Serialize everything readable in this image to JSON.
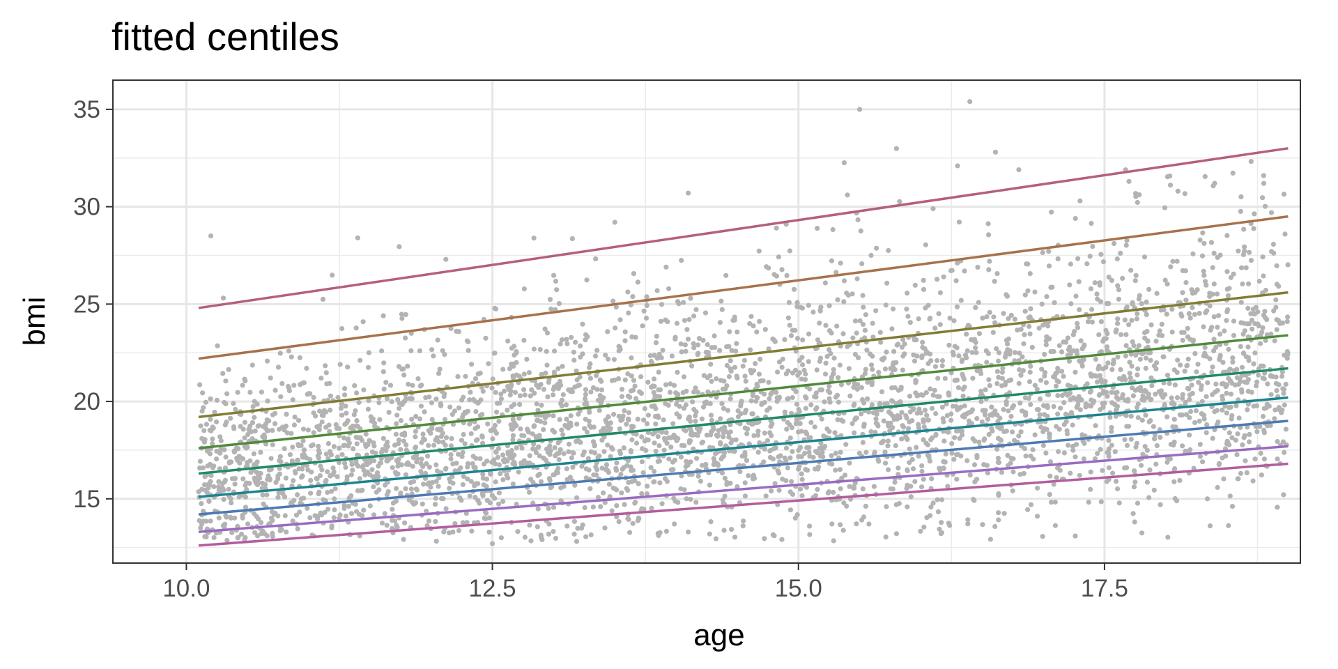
{
  "chart_data": {
    "type": "scatter",
    "title": "fitted centiles",
    "xlabel": "age",
    "ylabel": "bmi",
    "xlim": [
      9.4,
      19.1
    ],
    "ylim": [
      11.7,
      36.5
    ],
    "x_ticks": [
      10.0,
      12.5,
      15.0,
      17.5
    ],
    "x_tick_labels": [
      "10.0",
      "12.5",
      "15.0",
      "17.5"
    ],
    "y_ticks": [
      15,
      20,
      25,
      30,
      35
    ],
    "y_tick_labels": [
      "15",
      "20",
      "25",
      "30",
      "35"
    ],
    "grid": true,
    "legend": "none",
    "point_color": "#b3b3b3",
    "points_description_count": 4000,
    "age_range": [
      10.1,
      19.0
    ],
    "centile_lines": [
      {
        "x": [
          10.1,
          19.0
        ],
        "y": [
          12.6,
          16.8
        ],
        "color": "#b35d9f"
      },
      {
        "x": [
          10.1,
          19.0
        ],
        "y": [
          13.3,
          17.7
        ],
        "color": "#9a6bc2"
      },
      {
        "x": [
          10.1,
          19.0
        ],
        "y": [
          14.2,
          19.0
        ],
        "color": "#4e79b3"
      },
      {
        "x": [
          10.1,
          19.0
        ],
        "y": [
          15.1,
          20.2
        ],
        "color": "#1a8590"
      },
      {
        "x": [
          10.1,
          19.0
        ],
        "y": [
          16.3,
          21.7
        ],
        "color": "#21896b"
      },
      {
        "x": [
          10.1,
          19.0
        ],
        "y": [
          17.6,
          23.4
        ],
        "color": "#4f8a3c"
      },
      {
        "x": [
          10.1,
          19.0
        ],
        "y": [
          19.2,
          25.6
        ],
        "color": "#827c34"
      },
      {
        "x": [
          10.1,
          19.0
        ],
        "y": [
          22.2,
          29.5
        ],
        "color": "#a8714c"
      },
      {
        "x": [
          10.1,
          19.0
        ],
        "y": [
          24.8,
          33.0
        ],
        "color": "#b5607a"
      }
    ],
    "outliers": [
      {
        "x": 10.2,
        "y": 28.5
      },
      {
        "x": 11.4,
        "y": 28.4
      },
      {
        "x": 13.5,
        "y": 29.2
      },
      {
        "x": 14.1,
        "y": 30.7
      },
      {
        "x": 14.9,
        "y": 29.1
      },
      {
        "x": 15.4,
        "y": 30.6
      },
      {
        "x": 15.5,
        "y": 35.0
      },
      {
        "x": 16.1,
        "y": 29.9
      },
      {
        "x": 16.3,
        "y": 32.1
      },
      {
        "x": 16.4,
        "y": 35.4
      },
      {
        "x": 16.8,
        "y": 31.9
      },
      {
        "x": 17.3,
        "y": 30.3
      },
      {
        "x": 17.7,
        "y": 31.3
      },
      {
        "x": 18.1,
        "y": 30.8
      },
      {
        "x": 18.4,
        "y": 31.2
      },
      {
        "x": 18.8,
        "y": 31.6
      },
      {
        "x": 12.5,
        "y": 12.7
      },
      {
        "x": 12.9,
        "y": 13.0
      },
      {
        "x": 14.1,
        "y": 13.3
      },
      {
        "x": 16.9,
        "y": 14.7
      },
      {
        "x": 15.8,
        "y": 14.7
      }
    ]
  }
}
